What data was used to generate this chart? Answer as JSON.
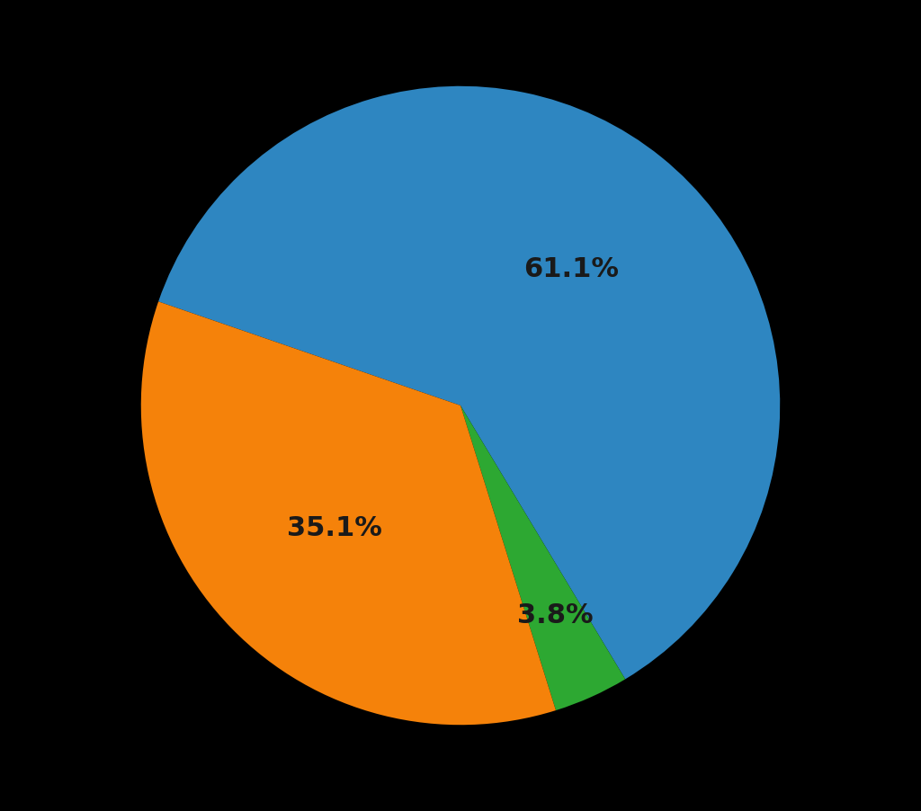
{
  "slices": [
    61.1,
    3.8,
    35.1
  ],
  "colors": [
    "#2e86c1",
    "#2da832",
    "#f5820a"
  ],
  "labels": [
    "61.1%",
    "3.8%",
    "35.1%"
  ],
  "label_radii": [
    0.55,
    0.72,
    0.55
  ],
  "background_color": "#000000",
  "text_color": "#1a1a1a",
  "startangle": 161,
  "label_fontsize": 22,
  "label_fontweight": "bold",
  "counterclock": false
}
